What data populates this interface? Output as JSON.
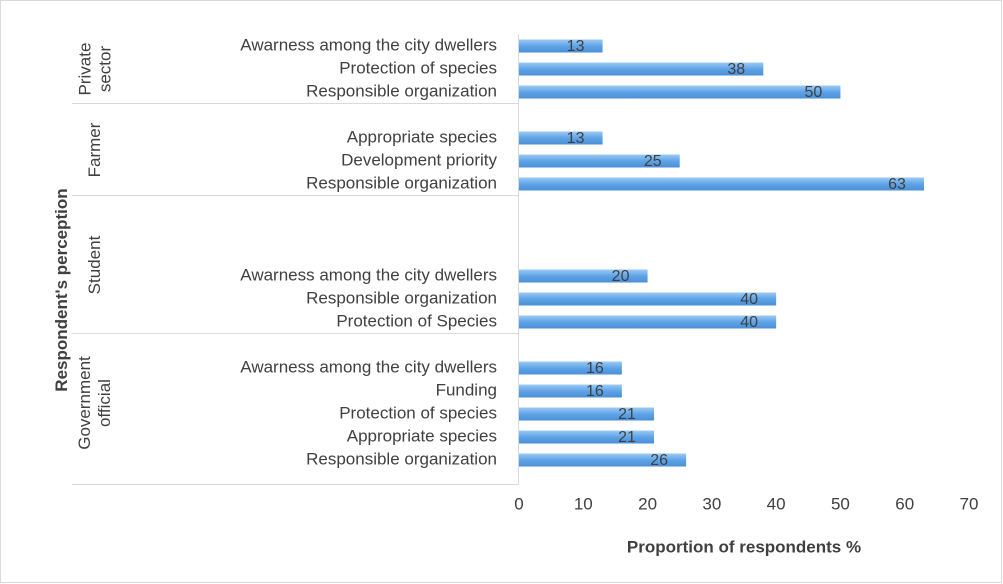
{
  "chart_data": {
    "type": "grouped-hbar",
    "xlabel": "Proportion of respondents %",
    "ylabel": "Respondent's perception",
    "color": "#5fa3e6",
    "xlim": [
      0,
      70
    ],
    "xticks": [
      0,
      10,
      20,
      30,
      40,
      50,
      60,
      70
    ],
    "groups": [
      {
        "name": "Private sector",
        "categories": [
          "Awarness among the city dwellers",
          "Protection of species",
          "Responsible organization"
        ],
        "values": [
          13,
          38,
          50
        ]
      },
      {
        "name": "Farmer",
        "categories": [
          null,
          "Appropriate species",
          "Development priority",
          "Responsible organization"
        ],
        "values": [
          null,
          13,
          25,
          63
        ]
      },
      {
        "name": "Student",
        "categories": [
          null,
          null,
          null,
          "Awarness among the city dwellers",
          "Responsible organization",
          "Protection of Species"
        ],
        "values": [
          null,
          null,
          null,
          20,
          40,
          40
        ]
      },
      {
        "name": "Government official",
        "categories": [
          null,
          "Awarness among the city dwellers",
          "Funding",
          "Protection of species",
          "Appropriate species",
          "Responsible organization"
        ],
        "values": [
          null,
          16,
          16,
          21,
          21,
          26
        ]
      }
    ]
  }
}
